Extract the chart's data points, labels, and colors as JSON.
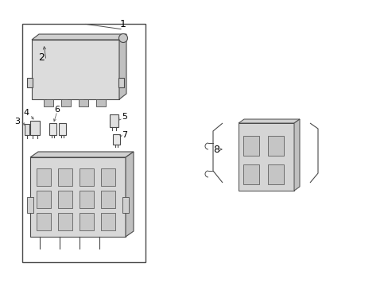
{
  "background_color": "#ffffff",
  "line_color": "#4a4a4a",
  "label_color": "#000000",
  "fig_width": 4.89,
  "fig_height": 3.6,
  "dpi": 100
}
